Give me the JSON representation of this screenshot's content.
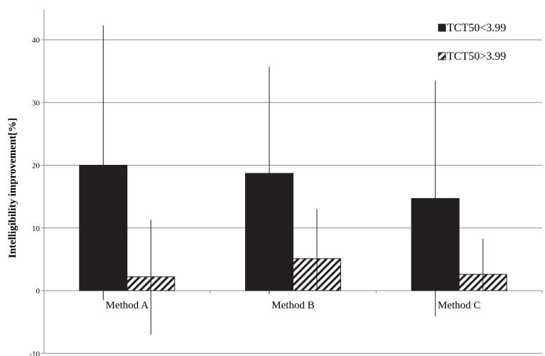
{
  "chart_data": {
    "type": "bar",
    "title": "",
    "xlabel": "",
    "ylabel": "Intelligibility improvement[%]",
    "ylim": [
      -10,
      45
    ],
    "yticks": [
      -10,
      0,
      10,
      20,
      30,
      40
    ],
    "categories": [
      "Method A",
      "Method B",
      "Method C"
    ],
    "grid": "horizontal",
    "legend_position": "top-right",
    "series": [
      {
        "name": "TCT50<3.99",
        "values": [
          20.0,
          18.7,
          14.7
        ],
        "error_upper": [
          42.3,
          35.7,
          33.5
        ],
        "error_lower": [
          -1.5,
          -0.5,
          -4.1
        ],
        "fill": "solid",
        "color": "#231f20"
      },
      {
        "name": "TCT50>3.99",
        "values": [
          2.2,
          5.1,
          2.6
        ],
        "error_upper": [
          11.3,
          13.0,
          8.3
        ],
        "error_lower": [
          -7.0,
          0.0,
          0.0
        ],
        "fill": "hatched",
        "color": "#231f20"
      }
    ]
  }
}
